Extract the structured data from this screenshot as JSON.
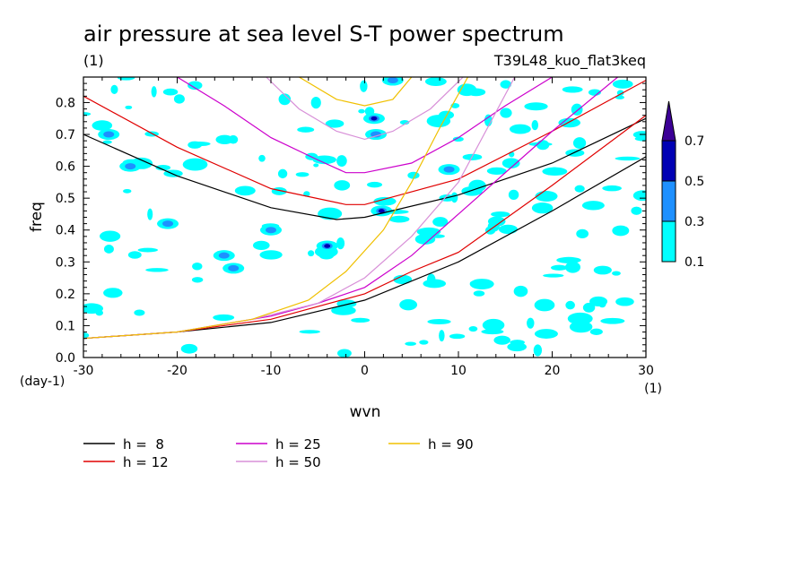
{
  "chart_data": {
    "type": "contour",
    "title": "air pressure at sea level S-T power spectrum",
    "units_label": "(1)",
    "run_label": "T39L48_kuo_flat3keq",
    "xlabel": "wvn",
    "x_units": "(1)",
    "ylabel": "freq",
    "y_units": "(day-1)",
    "xlim": [
      -30,
      30
    ],
    "ylim": [
      0,
      0.88
    ],
    "x_ticks": [
      "-30",
      "-20",
      "-10",
      "0",
      "10",
      "20",
      "30"
    ],
    "y_ticks": [
      "0.0",
      "0.1",
      "0.2",
      "0.3",
      "0.4",
      "0.5",
      "0.6",
      "0.7",
      "0.8"
    ],
    "contour_levels": [
      "0.1",
      "0.3",
      "0.5",
      "0.7"
    ],
    "level_colors": [
      "#00ffff",
      "#1e90ff",
      "#0000b4",
      "#3c0096"
    ],
    "legend": [
      {
        "label": "h =  8",
        "color": "#000000"
      },
      {
        "label": "h = 12",
        "color": "#e00000"
      },
      {
        "label": "h = 25",
        "color": "#cc00cc"
      },
      {
        "label": "h = 50",
        "color": "#d890d8"
      },
      {
        "label": "h = 90",
        "color": "#f0c000"
      }
    ],
    "dispersion_curves": [
      {
        "name": "h =  8",
        "color": "#000000",
        "kelvin": [
          [
            -30,
            0.06
          ],
          [
            -20,
            0.08
          ],
          [
            -10,
            0.11
          ],
          [
            0,
            0.18
          ],
          [
            10,
            0.3
          ],
          [
            20,
            0.46
          ],
          [
            30,
            0.63
          ]
        ],
        "wig": [
          [
            -30,
            0.7
          ],
          [
            -20,
            0.57
          ],
          [
            -10,
            0.47
          ],
          [
            -3,
            0.433
          ],
          [
            0,
            0.44
          ],
          [
            10,
            0.51
          ],
          [
            20,
            0.61
          ],
          [
            30,
            0.75
          ]
        ]
      },
      {
        "name": "h = 12",
        "color": "#e00000",
        "kelvin": [
          [
            -30,
            0.06
          ],
          [
            -20,
            0.08
          ],
          [
            -10,
            0.12
          ],
          [
            0,
            0.2
          ],
          [
            5,
            0.27
          ],
          [
            10,
            0.33
          ],
          [
            20,
            0.54
          ],
          [
            30,
            0.76
          ]
        ],
        "wig": [
          [
            -30,
            0.82
          ],
          [
            -20,
            0.66
          ],
          [
            -10,
            0.53
          ],
          [
            -2,
            0.48
          ],
          [
            0,
            0.48
          ],
          [
            10,
            0.56
          ],
          [
            20,
            0.71
          ],
          [
            30,
            0.87
          ]
        ]
      },
      {
        "name": "h = 25",
        "color": "#cc00cc",
        "kelvin": [
          [
            -30,
            0.06
          ],
          [
            -20,
            0.08
          ],
          [
            -10,
            0.13
          ],
          [
            -5,
            0.17
          ],
          [
            0,
            0.22
          ],
          [
            5,
            0.32
          ],
          [
            10,
            0.45
          ],
          [
            20,
            0.71
          ],
          [
            27,
            0.88
          ]
        ],
        "wig": [
          [
            -20,
            0.88
          ],
          [
            -15,
            0.79
          ],
          [
            -10,
            0.69
          ],
          [
            -5,
            0.62
          ],
          [
            -2,
            0.58
          ],
          [
            0,
            0.58
          ],
          [
            5,
            0.61
          ],
          [
            10,
            0.69
          ],
          [
            15,
            0.79
          ],
          [
            20,
            0.88
          ]
        ]
      },
      {
        "name": "h = 50",
        "color": "#d890d8",
        "kelvin": [
          [
            -30,
            0.06
          ],
          [
            -20,
            0.08
          ],
          [
            -12,
            0.12
          ],
          [
            -5,
            0.17
          ],
          [
            0,
            0.25
          ],
          [
            5,
            0.38
          ],
          [
            10,
            0.55
          ],
          [
            16,
            0.88
          ]
        ],
        "wig": [
          [
            -10.5,
            0.88
          ],
          [
            -7,
            0.78
          ],
          [
            -3,
            0.71
          ],
          [
            0,
            0.685
          ],
          [
            3,
            0.71
          ],
          [
            7,
            0.78
          ],
          [
            10.5,
            0.88
          ]
        ]
      },
      {
        "name": "h = 90",
        "color": "#f0c000",
        "kelvin": [
          [
            -30,
            0.06
          ],
          [
            -20,
            0.08
          ],
          [
            -12,
            0.12
          ],
          [
            -6,
            0.18
          ],
          [
            -2,
            0.27
          ],
          [
            2,
            0.4
          ],
          [
            5,
            0.55
          ],
          [
            8,
            0.72
          ],
          [
            11,
            0.88
          ]
        ],
        "wig": [
          [
            -7,
            0.88
          ],
          [
            -3,
            0.81
          ],
          [
            0,
            0.79
          ],
          [
            3,
            0.81
          ],
          [
            5,
            0.88
          ]
        ]
      }
    ]
  }
}
